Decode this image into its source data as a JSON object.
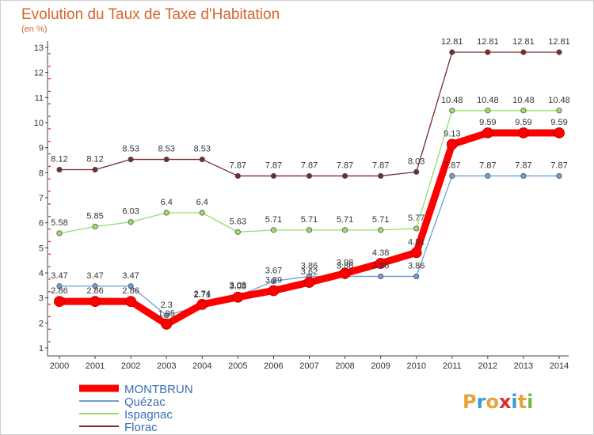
{
  "header": {
    "title": "Evolution du Taux de Taxe d'Habitation",
    "unit": "(en %)"
  },
  "brand": {
    "letters": [
      "P",
      "r",
      "o",
      "x",
      "i",
      "t",
      "i"
    ],
    "colors": [
      "#e8a23a",
      "#3d9ad1",
      "#e8a23a",
      "#d9302c",
      "#3d9ad1",
      "#e8a23a",
      "#7ab648"
    ]
  },
  "chart_data": {
    "type": "line",
    "title": "Evolution du Taux de Taxe d'Habitation",
    "ylabel": "(en %)",
    "xlabel": "",
    "x": [
      "2000",
      "2001",
      "2002",
      "2003",
      "2004",
      "2005",
      "2006",
      "2007",
      "2008",
      "2009",
      "2010",
      "2011",
      "2012",
      "2013",
      "2014"
    ],
    "ylim": [
      1,
      13
    ],
    "yticks": [
      "1",
      "2",
      "3",
      "4",
      "5",
      "6",
      "7",
      "8",
      "9",
      "10",
      "11",
      "12",
      "13"
    ],
    "grid": false,
    "legend_position": "bottom-left",
    "series": [
      {
        "name": "MONTBRUN",
        "color": "#ff0000",
        "highlight": true,
        "values": [
          2.86,
          2.86,
          2.86,
          1.95,
          2.74,
          3.03,
          3.29,
          3.62,
          3.98,
          4.38,
          4.81,
          9.13,
          9.59,
          9.59,
          9.59
        ],
        "labels": [
          "2.86",
          "2.86",
          "2.86",
          "1.95",
          "2.74",
          "3.03",
          "3.29",
          "3.62",
          "3.98",
          "4.38",
          "4.81",
          "9.13",
          "9.59",
          "9.59",
          "9.59"
        ]
      },
      {
        "name": "Quézac",
        "color": "#6f9fcf",
        "highlight": false,
        "values": [
          3.47,
          3.47,
          3.47,
          2.3,
          2.71,
          3.08,
          3.67,
          3.86,
          3.86,
          3.86,
          3.86,
          7.87,
          7.87,
          7.87,
          7.87
        ],
        "labels": [
          "3.47",
          "3.47",
          "3.47",
          "2.3",
          "2.71",
          "3.08",
          "3.67",
          "3.86",
          "3.86",
          "3.86",
          "3.86",
          "7.87",
          "7.87",
          "7.87",
          "7.87"
        ]
      },
      {
        "name": "Ispagnac",
        "color": "#99dd66",
        "highlight": false,
        "values": [
          5.58,
          5.85,
          6.03,
          6.4,
          6.4,
          5.63,
          5.71,
          5.71,
          5.71,
          5.71,
          5.77,
          10.48,
          10.48,
          10.48,
          10.48
        ],
        "labels": [
          "5.58",
          "5.85",
          "6.03",
          "6.4",
          "6.4",
          "5.63",
          "5.71",
          "5.71",
          "5.71",
          "5.71",
          "5.77",
          "10.48",
          "10.48",
          "10.48",
          "10.48"
        ]
      },
      {
        "name": "Florac",
        "color": "#7a2a2a",
        "highlight": false,
        "values": [
          8.12,
          8.12,
          8.53,
          8.53,
          8.53,
          7.87,
          7.87,
          7.87,
          7.87,
          7.87,
          8.03,
          12.81,
          12.81,
          12.81,
          12.81
        ],
        "labels": [
          "8.12",
          "8.12",
          "8.53",
          "8.53",
          "8.53",
          "7.87",
          "7.87",
          "7.87",
          "7.87",
          "7.87",
          "8.03",
          "12.81",
          "12.81",
          "12.81",
          "12.81"
        ]
      }
    ]
  }
}
